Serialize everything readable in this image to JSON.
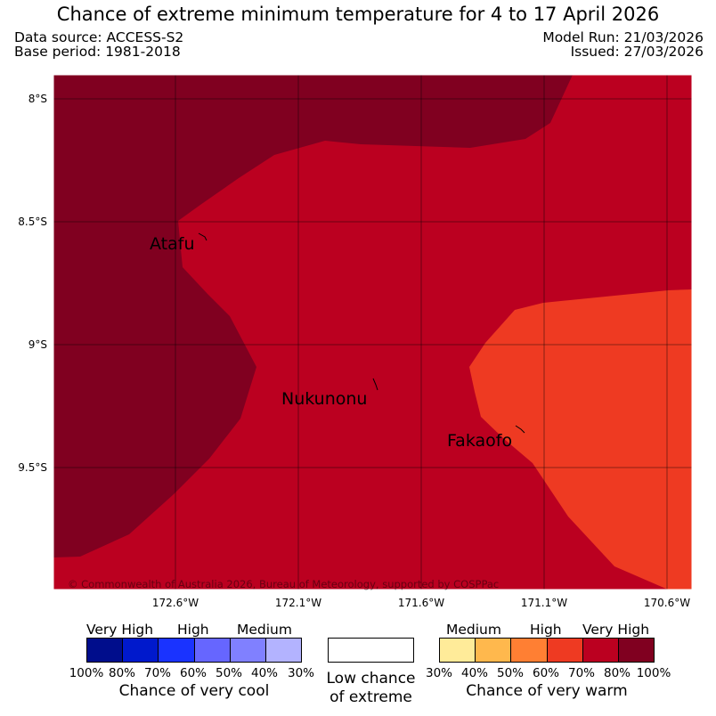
{
  "title": "Chance of extreme minimum temperature for 4 to 17 April 2026",
  "meta": {
    "data_source": "Data source: ACCESS-S2",
    "base_period": "Base period: 1981-2018",
    "model_run": "Model Run: 21/03/2026",
    "issued": "Issued: 27/03/2026"
  },
  "map": {
    "lat_labels": [
      "8°S",
      "8.5°S",
      "9°S",
      "9.5°S"
    ],
    "lon_labels": [
      "172.6°W",
      "172.1°W",
      "171.6°W",
      "171.1°W",
      "170.6°W"
    ],
    "places": [
      "Atafu",
      "Nukunonu",
      "Fakaofo"
    ],
    "copyright": "© Commonwealth of Australia 2026, Bureau of Meteorology, supported by COSPPac",
    "colors": {
      "very_high_warm": "#800020",
      "high_warm_70": "#bb0020",
      "high_warm_60": "#ee3a22"
    }
  },
  "legend": {
    "cool": {
      "headers": [
        "Very High",
        "High",
        "Medium"
      ],
      "colors": [
        "#000d8c",
        "#0019cc",
        "#1a33ff",
        "#6666ff",
        "#8080ff",
        "#b3b3ff"
      ],
      "ticks": [
        "100%",
        "80%",
        "70%",
        "60%",
        "50%",
        "40%",
        "30%"
      ],
      "caption": "Chance of very cool"
    },
    "neutral": {
      "caption_line1": "Low chance",
      "caption_line2": "of extreme"
    },
    "warm": {
      "headers": [
        "Medium",
        "High",
        "Very High"
      ],
      "colors": [
        "#ffeb99",
        "#ffb84d",
        "#ff7f33",
        "#ee3a22",
        "#bb0020",
        "#800020"
      ],
      "ticks": [
        "30%",
        "40%",
        "50%",
        "60%",
        "70%",
        "80%",
        "100%"
      ],
      "caption": "Chance of very warm"
    }
  }
}
